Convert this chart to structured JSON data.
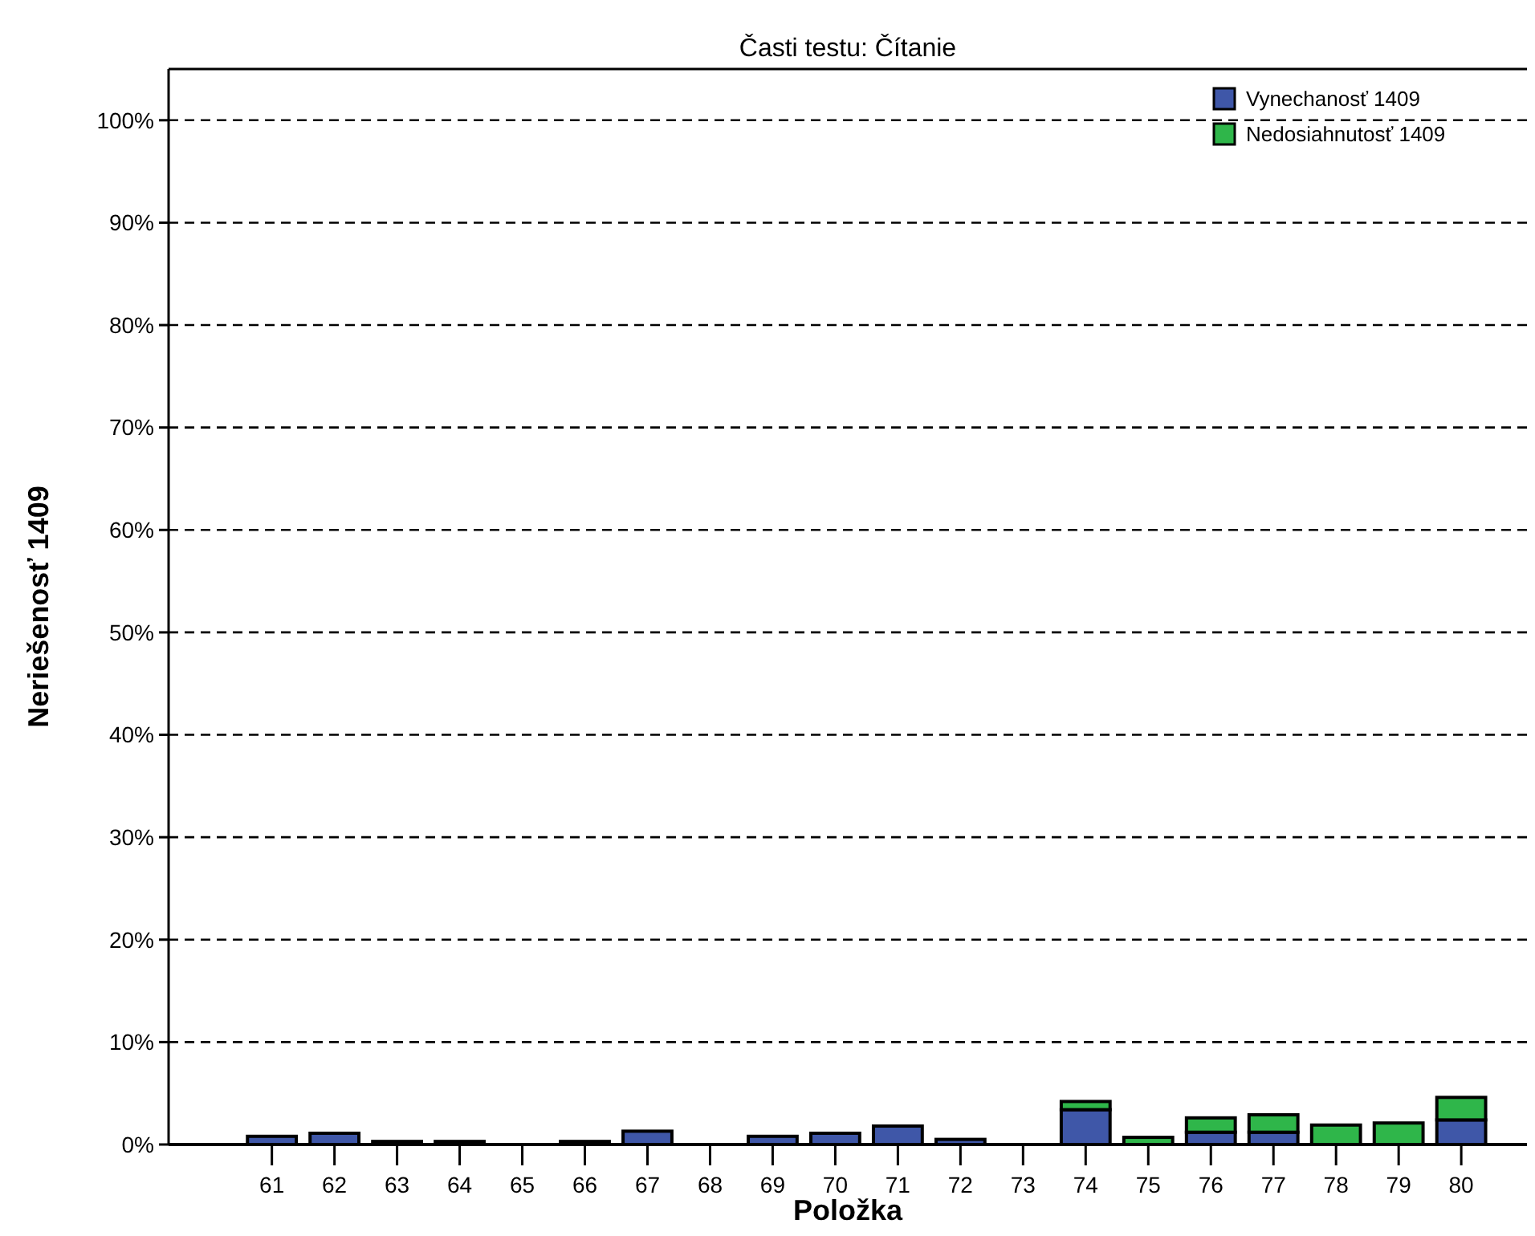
{
  "chart_data": {
    "type": "bar",
    "title": "Časti testu: Čítanie",
    "xlabel": "Položka",
    "ylabel": "Neriešenosť 1409",
    "categories": [
      "61",
      "62",
      "63",
      "64",
      "65",
      "66",
      "67",
      "68",
      "69",
      "70",
      "71",
      "72",
      "73",
      "74",
      "75",
      "76",
      "77",
      "78",
      "79",
      "80"
    ],
    "stacked": true,
    "series": [
      {
        "name": "Vynechanosť 1409",
        "color": "#3f57a8",
        "values": [
          0.8,
          1.1,
          0.3,
          0.3,
          null,
          0.3,
          1.3,
          null,
          0.8,
          1.1,
          1.8,
          0.5,
          null,
          3.4,
          0,
          1.2,
          1.2,
          null,
          0,
          2.4
        ]
      },
      {
        "name": "Nedosiahnutosť 1409",
        "color": "#2fb64a",
        "values": [
          0,
          0,
          0,
          0,
          0,
          0,
          0,
          0,
          0,
          0,
          0,
          0,
          0,
          0.8,
          0.7,
          1.4,
          1.7,
          1.9,
          2.1,
          2.2
        ]
      }
    ],
    "ylim": [
      0,
      105
    ],
    "yticks": [
      {
        "value": 0,
        "label": "0%"
      },
      {
        "value": 10,
        "label": "10%"
      },
      {
        "value": 20,
        "label": "20%"
      },
      {
        "value": 30,
        "label": "30%"
      },
      {
        "value": 40,
        "label": "40%"
      },
      {
        "value": 50,
        "label": "50%"
      },
      {
        "value": 60,
        "label": "60%"
      },
      {
        "value": 70,
        "label": "70%"
      },
      {
        "value": 80,
        "label": "80%"
      },
      {
        "value": 90,
        "label": "90%"
      },
      {
        "value": 100,
        "label": "100%"
      }
    ],
    "grid": "y",
    "legend": "top right"
  }
}
